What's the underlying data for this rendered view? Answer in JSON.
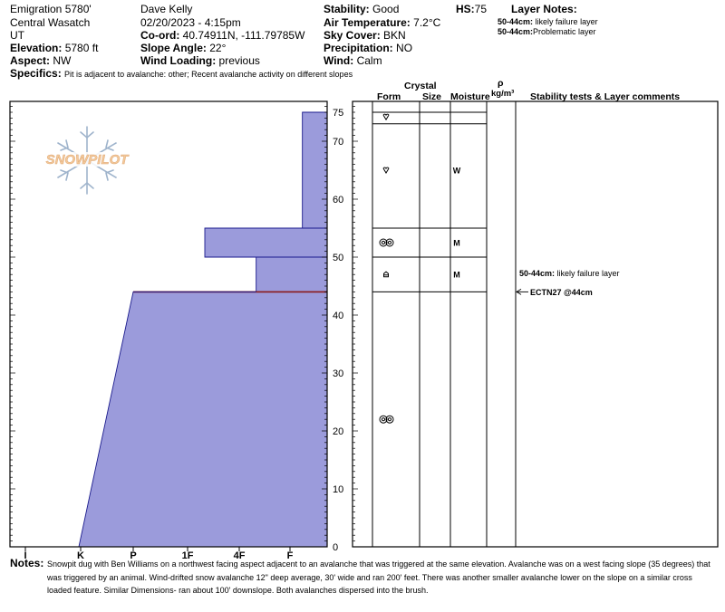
{
  "header": {
    "location": "Emigration 5780'",
    "range": "Central Wasatch",
    "state": "UT",
    "elevation_label": "Elevation:",
    "elevation_value": "5780 ft",
    "aspect_label": "Aspect:",
    "aspect_value": "NW",
    "specifics_label": "Specifics:",
    "specifics_value": "Pit is adjacent to avalanche: other; Recent avalanche activity on different slopes",
    "observer": "Dave Kelly",
    "datetime": "02/20/2023 - 4:15pm",
    "coord_label": "Co-ord:",
    "coord_value": "40.74911N, -111.79785W",
    "slope_label": "Slope Angle:",
    "slope_value": "22°",
    "wind_loading_label": "Wind Loading:",
    "wind_loading_value": "previous",
    "stability_label": "Stability:",
    "stability_value": "Good",
    "air_temp_label": "Air Temperature:",
    "air_temp_value": "7.2°C",
    "sky_label": "Sky Cover:",
    "sky_value": "BKN",
    "precip_label": "Precipitation:",
    "precip_value": "NO",
    "wind_label": "Wind:",
    "wind_value": "Calm",
    "hs_label": "HS:",
    "hs_value": "75"
  },
  "layer_notes": {
    "title": "Layer Notes:",
    "items": [
      {
        "range": "50-44cm:",
        "text": "likely failure layer"
      },
      {
        "range": "50-44cm:",
        "text": "Problematic layer"
      }
    ]
  },
  "logo_text": "SNOWPILOT",
  "columns": {
    "crystal": "Crystal",
    "form": "Form",
    "size": "Size",
    "moisture": "Moisture",
    "rho": "ρ",
    "density_unit": "kg/m³",
    "comments": "Stability tests & Layer comments"
  },
  "chart_data": {
    "type": "bar",
    "title": "",
    "xlabel": "",
    "ylabel": "",
    "x_categories": [
      "I",
      "K",
      "P",
      "1F",
      "4F",
      "F"
    ],
    "ylim": [
      0,
      77
    ],
    "y_ticks": [
      0,
      10,
      20,
      30,
      40,
      50,
      60,
      70,
      75
    ],
    "hardness_profile": [
      {
        "top_cm": 44,
        "bottom_cm": 0,
        "hardness_top": "P",
        "hardness_bottom": "K-"
      },
      {
        "top_cm": 50,
        "bottom_cm": 44,
        "hardness_top": "4F+",
        "hardness_bottom": "4F+"
      },
      {
        "top_cm": 55,
        "bottom_cm": 50,
        "hardness_top": "1F+",
        "hardness_bottom": "1F+"
      },
      {
        "top_cm": 75,
        "bottom_cm": 55,
        "hardness_top": "F+",
        "hardness_bottom": "F+"
      }
    ],
    "weak_layer_cm": 44,
    "layer_boundaries_cm": [
      75,
      73,
      55,
      50,
      44,
      0
    ],
    "layers": [
      {
        "top": 75,
        "bottom": 73,
        "form": "surface-hoar",
        "moisture": ""
      },
      {
        "top": 73,
        "bottom": 55,
        "form": "surface-hoar",
        "moisture": "W"
      },
      {
        "top": 55,
        "bottom": 50,
        "form": "melt-forms",
        "moisture": "M"
      },
      {
        "top": 50,
        "bottom": 44,
        "form": "depth-hoar",
        "moisture": "M"
      },
      {
        "top": 44,
        "bottom": 0,
        "form": "melt-forms",
        "moisture": ""
      }
    ],
    "comments": [
      {
        "depth_cm": 46,
        "text": "50-44cm: likely failure layer",
        "arrow": false
      },
      {
        "depth_cm": 44,
        "text": "ECTN27 @44cm",
        "arrow": true
      }
    ]
  },
  "notes": {
    "label": "Notes:",
    "text": "Snowpit dug with Ben Williams on a northwest facing aspect adjacent to an avalanche that was triggered at the same elevation. Avalanche was on a west facing slope (35 degrees) that was triggered by an animal. Wind-drifted snow avalanche 12\" deep average, 30' wide and ran 200' feet. There was another smaller avalanche lower on the slope on a similar cross loaded feature. Similar Dimensions- ran about 100' downslope. Both avalanches dispersed into the brush."
  }
}
